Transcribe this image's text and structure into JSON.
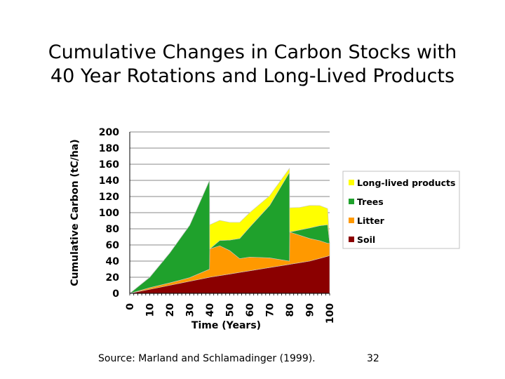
{
  "slide": {
    "title_line1": "Cumulative Changes in Carbon Stocks with",
    "title_line2": "40 Year Rotations and Long-Lived Products",
    "source": "Source:  Marland and Schlamadinger (1999).",
    "page_number": "32"
  },
  "chart_data": {
    "type": "area",
    "stacked": true,
    "title": "",
    "xlabel": "Time (Years)",
    "ylabel": "Cumulative Carbon (tC/ha)",
    "xlim": [
      0,
      100
    ],
    "ylim": [
      0,
      200
    ],
    "x_ticks": [
      0,
      10,
      20,
      30,
      40,
      50,
      60,
      70,
      80,
      90,
      100
    ],
    "y_ticks": [
      0,
      20,
      40,
      60,
      80,
      100,
      120,
      140,
      160,
      180,
      200
    ],
    "grid": true,
    "legend_position": "right",
    "colors": {
      "Long-lived products": "#ffff00",
      "Trees": "#1fa12c",
      "Litter": "#ff9900",
      "Soil": "#8b0000"
    },
    "legend": [
      "Long-lived products",
      "Trees",
      "Litter",
      "Soil"
    ],
    "stack_order": [
      "Soil",
      "Litter",
      "Trees",
      "Long-lived products"
    ],
    "series": [
      {
        "name": "Soil",
        "x": [
          0,
          10,
          20,
          30,
          40,
          50,
          60,
          70,
          80,
          90,
          99,
          100
        ],
        "y": [
          0,
          5,
          10,
          15,
          20,
          24,
          28,
          32,
          36,
          40,
          46,
          47
        ]
      },
      {
        "name": "Litter",
        "x": [
          0,
          10,
          20,
          30,
          39.9,
          40,
          45,
          50,
          55,
          60,
          70,
          79.9,
          80,
          85,
          90,
          95,
          99,
          100
        ],
        "y": [
          0,
          2,
          3,
          4.5,
          10,
          35,
          37,
          29,
          17,
          17,
          12,
          4,
          40,
          34,
          28,
          22,
          16,
          15
        ]
      },
      {
        "name": "Trees",
        "x": [
          0,
          10,
          20,
          30,
          39.9,
          40,
          50,
          60,
          70,
          79.9,
          80,
          90,
          99,
          100
        ],
        "y": [
          0,
          13,
          37,
          65,
          110,
          0,
          13,
          37,
          65,
          110,
          0,
          13,
          23,
          0
        ]
      },
      {
        "name": "Long-lived products",
        "x": [
          0,
          39.9,
          40,
          45,
          50,
          55,
          60,
          70,
          79.9,
          80,
          85,
          90,
          95,
          99,
          100
        ],
        "y": [
          0,
          0,
          30,
          25,
          22,
          20,
          18,
          12,
          5,
          30,
          28,
          28,
          25,
          20,
          0
        ]
      }
    ]
  }
}
